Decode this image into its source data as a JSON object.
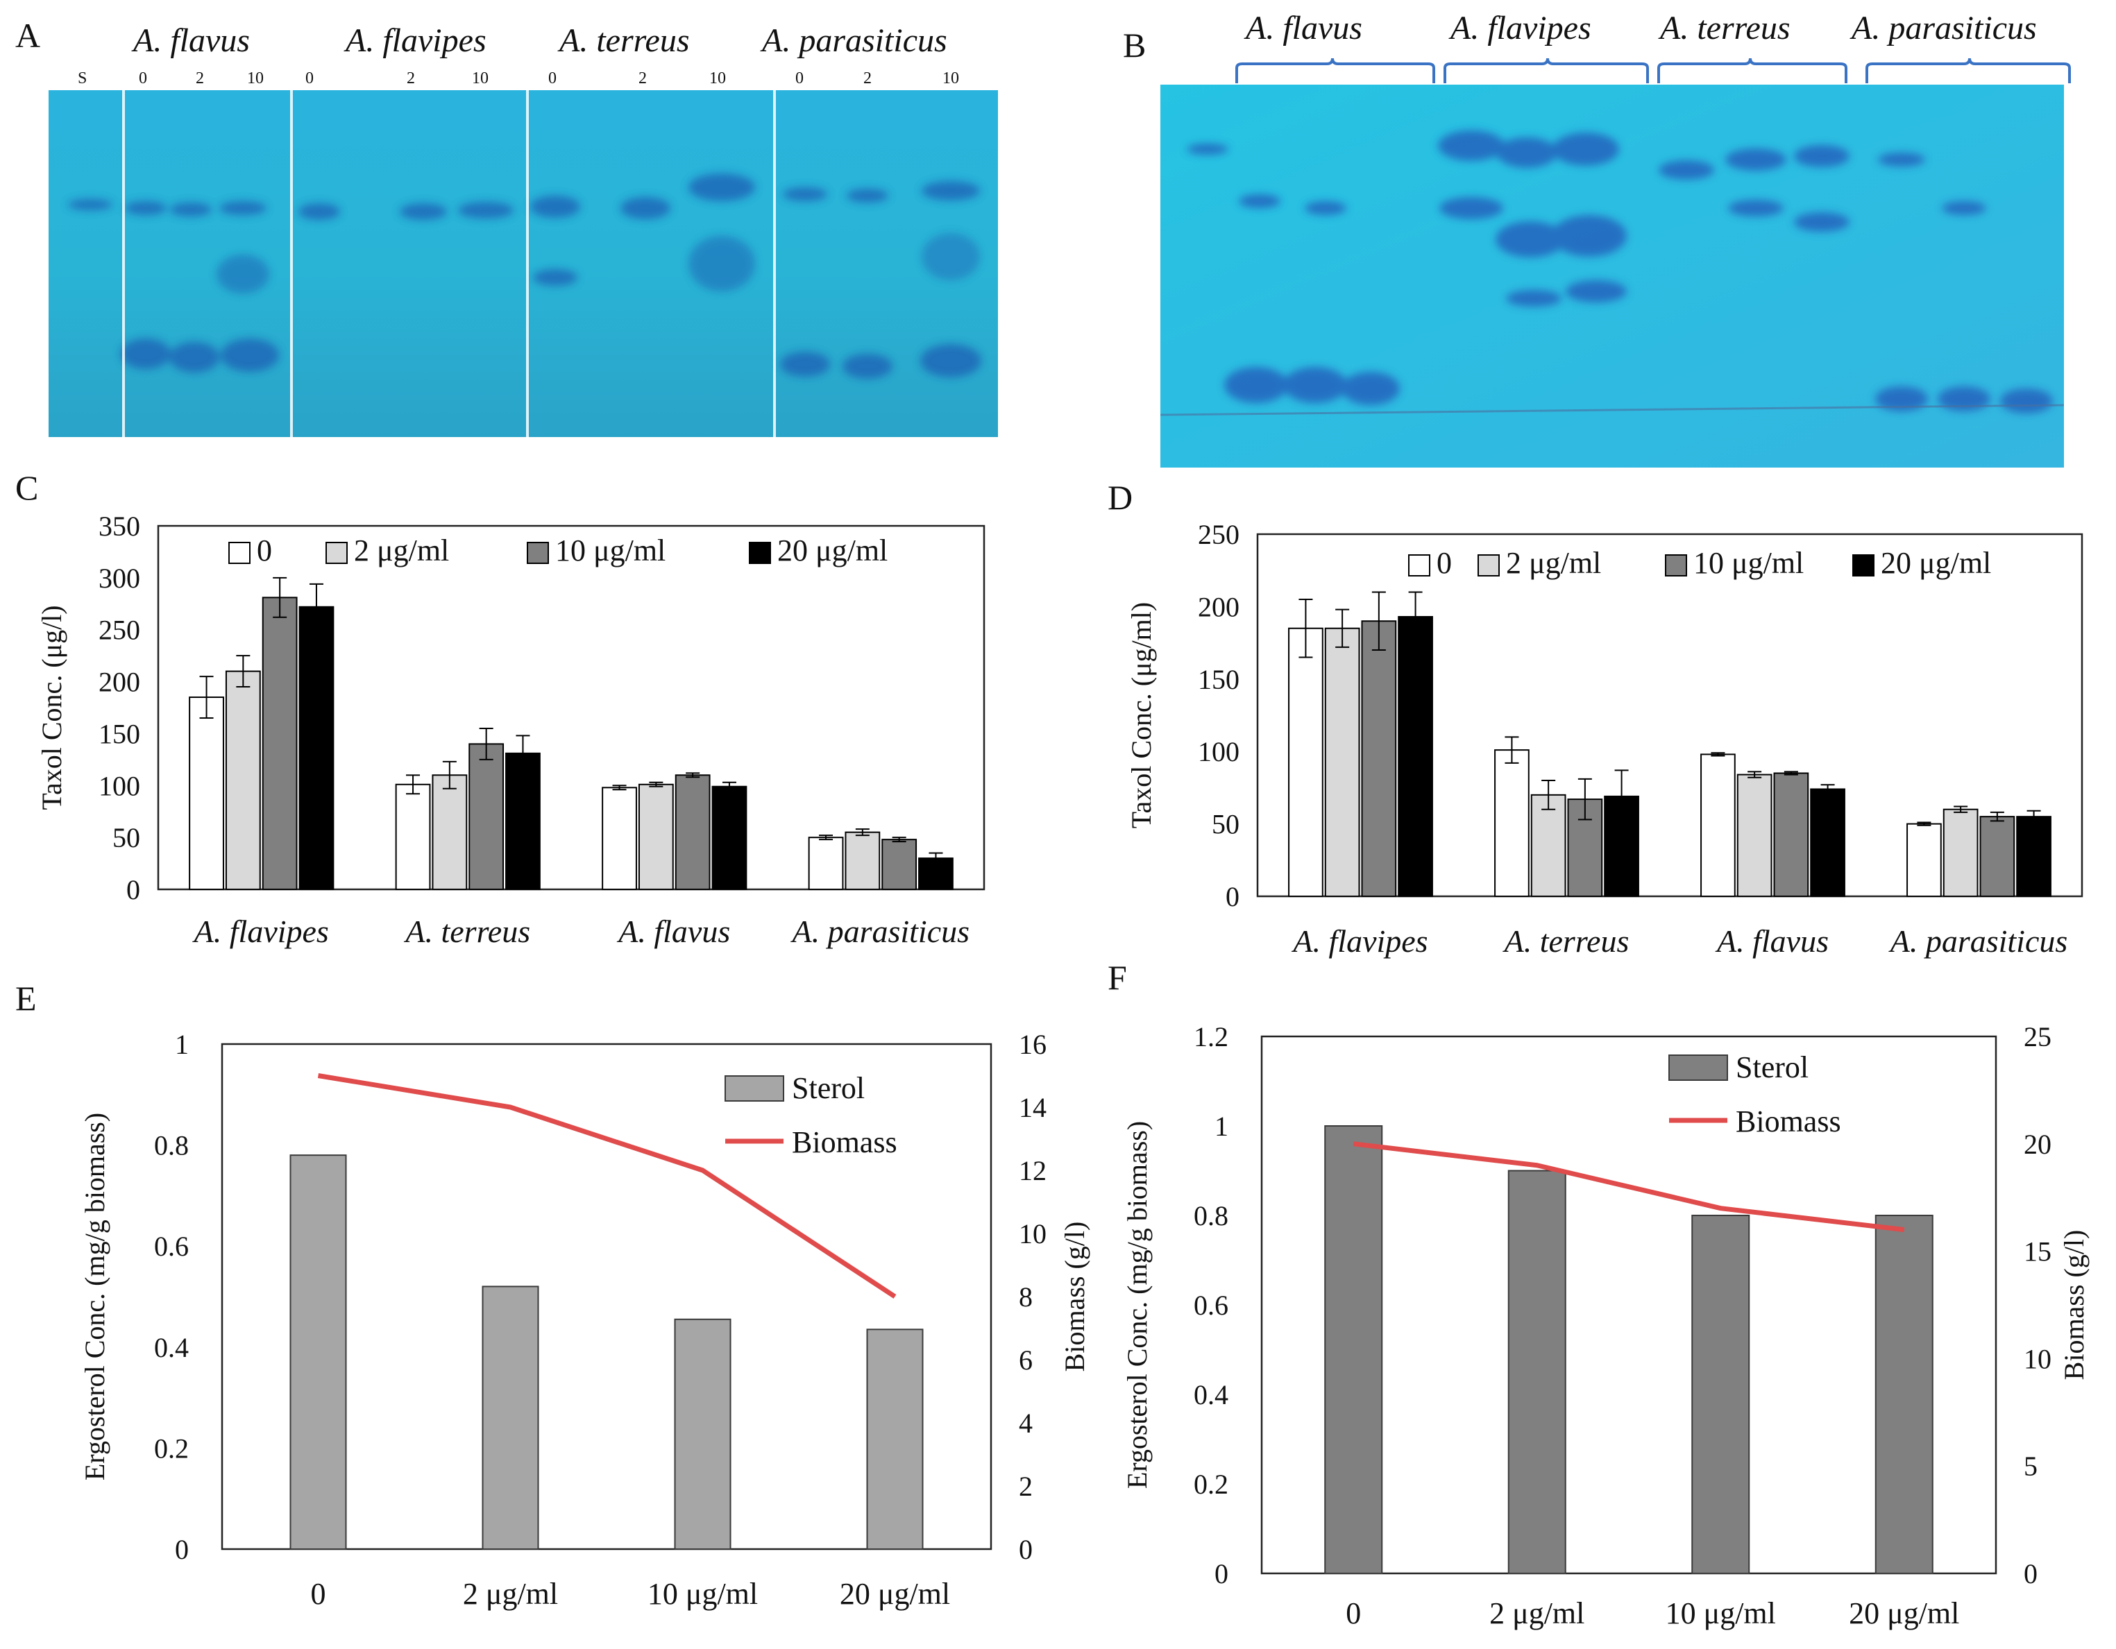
{
  "panel_labels": [
    "A",
    "B",
    "C",
    "D",
    "E",
    "F"
  ],
  "tlc_a": {
    "species": [
      "A. flavus",
      "A. flavipes",
      "A. terreus",
      "A. parasiticus"
    ],
    "standard_lane": "S",
    "lane_labels": [
      "0",
      "2",
      "10"
    ]
  },
  "tlc_b": {
    "species": [
      "A. flavus",
      "A. flavipes",
      "A. terreus",
      "A. parasiticus"
    ]
  },
  "chart_data": [
    {
      "panel": "C",
      "type": "bar",
      "categories": [
        "A. flavipes",
        "A. terreus",
        "A. flavus",
        "A. parasiticus"
      ],
      "series": [
        {
          "name": "0",
          "color": "#ffffff",
          "values": [
            185,
            101,
            98,
            50
          ],
          "errors": [
            20,
            9,
            2,
            2
          ]
        },
        {
          "name": "2 μg/ml",
          "color": "#d9d9d9",
          "values": [
            210,
            110,
            101,
            55
          ],
          "errors": [
            15,
            13,
            2,
            3
          ]
        },
        {
          "name": "10 μg/ml",
          "color": "#808080",
          "values": [
            281,
            140,
            110,
            48
          ],
          "errors": [
            19,
            15,
            2,
            2
          ]
        },
        {
          "name": "20 μg/ml",
          "color": "#000000",
          "values": [
            272,
            131,
            99,
            30
          ],
          "errors": [
            22,
            17,
            4,
            5
          ]
        }
      ],
      "ylabel": "Taxol Conc. (μg/l)",
      "ylim": [
        0,
        350
      ],
      "yticks": [
        "0",
        "50",
        "100",
        "150",
        "200",
        "250",
        "300",
        "350"
      ],
      "legend": "top"
    },
    {
      "panel": "D",
      "type": "bar",
      "categories": [
        "A. flavipes",
        "A. terreus",
        "A. flavus",
        "A. parasiticus"
      ],
      "series": [
        {
          "name": "0",
          "color": "#ffffff",
          "values": [
            185,
            101,
            98,
            50
          ],
          "errors": [
            20,
            9,
            1,
            1
          ]
        },
        {
          "name": "2 μg/ml",
          "color": "#d9d9d9",
          "values": [
            185,
            70,
            84,
            60
          ],
          "errors": [
            13,
            10,
            2,
            2
          ]
        },
        {
          "name": "10 μg/ml",
          "color": "#808080",
          "values": [
            190,
            67,
            85,
            55
          ],
          "errors": [
            20,
            14,
            1,
            3
          ]
        },
        {
          "name": "20 μg/ml",
          "color": "#000000",
          "values": [
            193,
            69,
            74,
            55
          ],
          "errors": [
            17,
            18,
            3,
            4
          ]
        }
      ],
      "ylabel": "Taxol Conc. (μg/ml)",
      "ylim": [
        0,
        250
      ],
      "yticks": [
        "0",
        "50",
        "100",
        "150",
        "200",
        "250"
      ],
      "legend": "top"
    },
    {
      "panel": "E",
      "type": "bar",
      "categories": [
        "0",
        "2 μg/ml",
        "10 μg/ml",
        "20 μg/ml"
      ],
      "series": [
        {
          "name": "Sterol",
          "kind": "bar",
          "axis": "left",
          "color": "#a6a6a6",
          "values": [
            0.78,
            0.52,
            0.455,
            0.435
          ]
        },
        {
          "name": "Biomass",
          "kind": "line",
          "axis": "right",
          "color": "#e04b4b",
          "values": [
            15,
            14,
            12,
            8
          ]
        }
      ],
      "ylabel": "Ergosterol Conc. (mg/g biomass)",
      "y2label": "Biomass (g/l)",
      "ylim": [
        0,
        1
      ],
      "y2lim": [
        0,
        16
      ],
      "yticks": [
        "0",
        "0.2",
        "0.4",
        "0.6",
        "0.8",
        "1"
      ],
      "y2ticks": [
        "0",
        "2",
        "4",
        "6",
        "8",
        "10",
        "12",
        "14",
        "16"
      ],
      "legend": "top-right"
    },
    {
      "panel": "F",
      "type": "bar",
      "categories": [
        "0",
        "2 μg/ml",
        "10 μg/ml",
        "20 μg/ml"
      ],
      "series": [
        {
          "name": "Sterol",
          "kind": "bar",
          "axis": "left",
          "color": "#808080",
          "values": [
            1.0,
            0.9,
            0.8,
            0.8
          ]
        },
        {
          "name": "Biomass",
          "kind": "line",
          "axis": "right",
          "color": "#e04b4b",
          "values": [
            20,
            19,
            17,
            16
          ]
        }
      ],
      "ylabel": "Ergosterol Conc. (mg/g biomass)",
      "y2label": "Biomass (g/l)",
      "ylim": [
        0,
        1.2
      ],
      "y2lim": [
        0,
        25
      ],
      "yticks": [
        "0",
        "0.2",
        "0.4",
        "0.6",
        "0.8",
        "1",
        "1.2"
      ],
      "y2ticks": [
        "0",
        "5",
        "10",
        "15",
        "20",
        "25"
      ],
      "legend": "top-center"
    }
  ]
}
